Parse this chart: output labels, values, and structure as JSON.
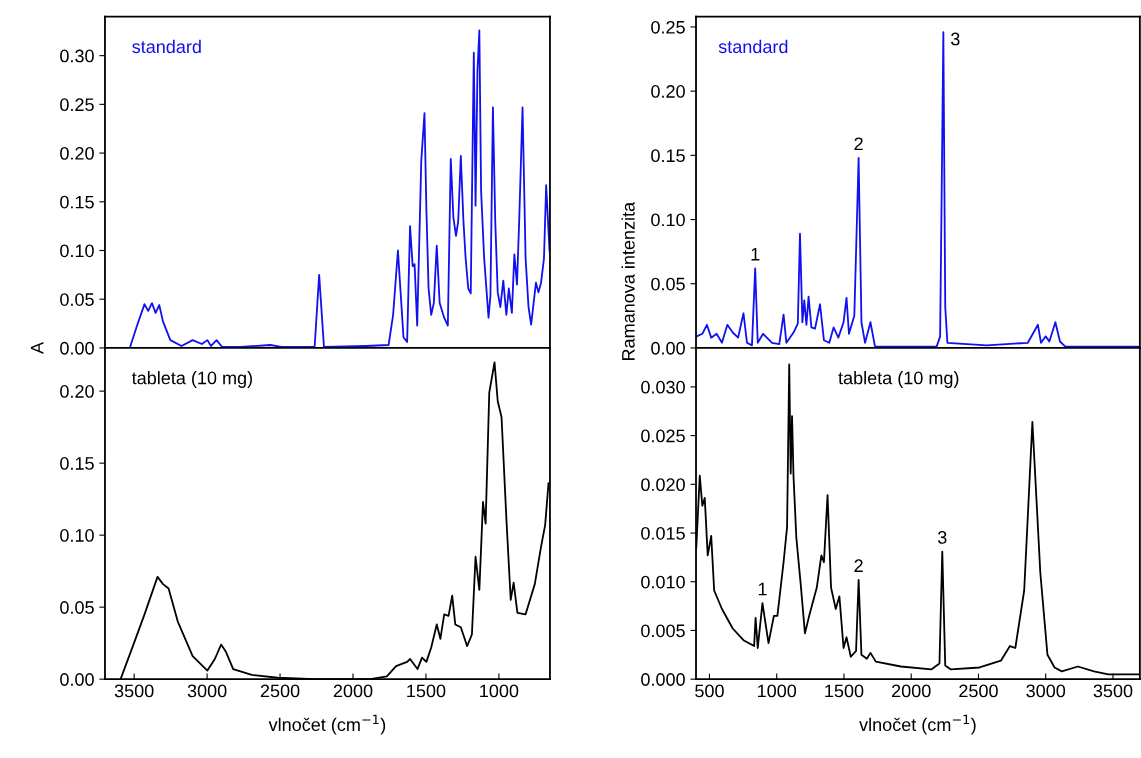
{
  "chart_data": [
    {
      "type": "line",
      "annotations": [
        "standard"
      ],
      "ylabel": "A",
      "tick_labels": "y",
      "xlim": [
        3700,
        650
      ],
      "ylim": [
        0,
        0.34
      ],
      "xticks": [
        3500,
        3000,
        2500,
        2000,
        1500,
        1000
      ],
      "yticks": [
        {
          "value": 0,
          "label": "0.00"
        },
        {
          "value": 0.05,
          "label": "0.05"
        },
        {
          "value": 0.1,
          "label": "0.10"
        },
        {
          "value": 0.15,
          "label": "0.15"
        },
        {
          "value": 0.2,
          "label": "0.20"
        },
        {
          "value": 0.25,
          "label": "0.25"
        },
        {
          "value": 0.3,
          "label": "0.30"
        }
      ],
      "series": [
        {
          "color": "#1010f0",
          "x": [
            3530,
            3480,
            3429,
            3404,
            3378,
            3353,
            3328,
            3302,
            3252,
            3175,
            3099,
            3036,
            2998,
            2973,
            2935,
            2897,
            2770,
            2567,
            2491,
            2263,
            2232,
            2199,
            1908,
            1756,
            1725,
            1692,
            1654,
            1629,
            1609,
            1591,
            1578,
            1560,
            1532,
            1510,
            1497,
            1482,
            1464,
            1446,
            1426,
            1406,
            1375,
            1350,
            1330,
            1312,
            1294,
            1279,
            1261,
            1243,
            1228,
            1210,
            1193,
            1172,
            1160,
            1147,
            1134,
            1122,
            1101,
            1071,
            1058,
            1041,
            1025,
            1008,
            990,
            970,
            949,
            932,
            911,
            894,
            876,
            861,
            838,
            817,
            797,
            779,
            762,
            746,
            729,
            711,
            691,
            676,
            653
          ],
          "values": [
            0,
            0.023,
            0.045,
            0.038,
            0.046,
            0.036,
            0.044,
            0.027,
            0.008,
            0.002,
            0.008,
            0.004,
            0.008,
            0.002,
            0.008,
            0.001,
            0.001,
            0.003,
            0.001,
            0.001,
            0.075,
            0.001,
            0.002,
            0.003,
            0.034,
            0.1,
            0.011,
            0.006,
            0.125,
            0.084,
            0.086,
            0.023,
            0.192,
            0.241,
            0.142,
            0.061,
            0.034,
            0.046,
            0.105,
            0.046,
            0.031,
            0.023,
            0.194,
            0.134,
            0.115,
            0.13,
            0.197,
            0.13,
            0.092,
            0.061,
            0.056,
            0.303,
            0.146,
            0.284,
            0.326,
            0.161,
            0.092,
            0.031,
            0.054,
            0.247,
            0.13,
            0.057,
            0.042,
            0.069,
            0.034,
            0.061,
            0.036,
            0.096,
            0.065,
            0.13,
            0.247,
            0.092,
            0.042,
            0.024,
            0.046,
            0.067,
            0.057,
            0.067,
            0.092,
            0.167,
            0.1
          ]
        }
      ]
    },
    {
      "type": "line",
      "annotations": [
        "standard",
        {
          "text": "1",
          "x": 840,
          "y": 0.062
        },
        {
          "text": "2",
          "x": 1609,
          "y": 0.148
        },
        {
          "text": "3",
          "x": 2239,
          "y": 0.246
        }
      ],
      "ylabel": "Ramanova intenzita",
      "tick_labels": "y",
      "xlim": [
        400,
        3700
      ],
      "ylim": [
        0,
        0.258
      ],
      "xticks": [
        500,
        1000,
        1500,
        2000,
        2500,
        3000,
        3500
      ],
      "yticks": [
        {
          "value": 0,
          "label": "0.00"
        },
        {
          "value": 0.05,
          "label": "0.05"
        },
        {
          "value": 0.1,
          "label": "0.10"
        },
        {
          "value": 0.15,
          "label": "0.15"
        },
        {
          "value": 0.2,
          "label": "0.20"
        },
        {
          "value": 0.25,
          "label": "0.25"
        }
      ],
      "series": [
        {
          "color": "#1010f0",
          "x": [
            407,
            447,
            481,
            513,
            553,
            593,
            633,
            673,
            713,
            753,
            779,
            816,
            840,
            859,
            899,
            965,
            1019,
            1051,
            1072,
            1125,
            1157,
            1173,
            1191,
            1205,
            1221,
            1237,
            1258,
            1285,
            1322,
            1351,
            1391,
            1423,
            1458,
            1497,
            1519,
            1537,
            1577,
            1609,
            1630,
            1657,
            1697,
            1731,
            1923,
            2189,
            2215,
            2231,
            2239,
            2253,
            2269,
            2561,
            2867,
            2942,
            2965,
            3000,
            3027,
            3072,
            3106,
            3146,
            3691
          ],
          "values": [
            0.009,
            0.011,
            0.018,
            0.008,
            0.011,
            0.004,
            0.018,
            0.012,
            0.008,
            0.027,
            0.004,
            0.002,
            0.062,
            0.004,
            0.011,
            0.004,
            0.003,
            0.026,
            0.004,
            0.012,
            0.019,
            0.089,
            0.02,
            0.037,
            0.018,
            0.04,
            0.016,
            0.015,
            0.034,
            0.006,
            0.004,
            0.016,
            0.008,
            0.02,
            0.039,
            0.011,
            0.025,
            0.148,
            0.02,
            0.004,
            0.02,
            0.001,
            0.001,
            0.001,
            0.009,
            0.166,
            0.246,
            0.032,
            0.004,
            0.002,
            0.004,
            0.018,
            0.004,
            0.009,
            0.005,
            0.02,
            0.005,
            0.001,
            0.001
          ]
        }
      ]
    },
    {
      "type": "line",
      "annotations": [
        "tableta (10 mg)"
      ],
      "xlabel": "vlnočet (cm$^{−1}$)",
      "xlim": [
        3700,
        650
      ],
      "ylim": [
        0,
        0.23
      ],
      "xticks": [
        3500,
        3000,
        2500,
        2000,
        1500,
        1000
      ],
      "yticks": [
        {
          "value": 0,
          "label": "0.00"
        },
        {
          "value": 0.05,
          "label": "0.05"
        },
        {
          "value": 0.1,
          "label": "0.10"
        },
        {
          "value": 0.15,
          "label": "0.15"
        },
        {
          "value": 0.2,
          "label": "0.20"
        }
      ],
      "series": [
        {
          "color": "#000000",
          "x": [
            3593,
            3505,
            3429,
            3340,
            3302,
            3264,
            3201,
            3099,
            2998,
            2947,
            2904,
            2871,
            2821,
            2694,
            2516,
            2263,
            1882,
            1768,
            1705,
            1629,
            1609,
            1558,
            1527,
            1497,
            1464,
            1426,
            1401,
            1375,
            1345,
            1320,
            1299,
            1261,
            1218,
            1185,
            1160,
            1134,
            1109,
            1091,
            1066,
            1030,
            1008,
            982,
            949,
            919,
            899,
            873,
            817,
            754,
            711,
            683,
            660
          ],
          "values": [
            0,
            0.024,
            0.045,
            0.071,
            0.066,
            0.063,
            0.04,
            0.016,
            0.006,
            0.014,
            0.024,
            0.019,
            0.007,
            0.003,
            0.001,
            0,
            0,
            0.002,
            0.009,
            0.012,
            0.014,
            0.007,
            0.015,
            0.012,
            0.022,
            0.038,
            0.028,
            0.045,
            0.044,
            0.058,
            0.038,
            0.036,
            0.023,
            0.031,
            0.085,
            0.062,
            0.123,
            0.108,
            0.199,
            0.22,
            0.193,
            0.182,
            0.112,
            0.055,
            0.067,
            0.046,
            0.045,
            0.066,
            0.092,
            0.107,
            0.136
          ]
        }
      ]
    },
    {
      "type": "line",
      "annotations": [
        "tableta (10 mg)",
        {
          "text": "1",
          "x": 894,
          "y": 0.0078
        },
        {
          "text": "2",
          "x": 1609,
          "y": 0.0102
        },
        {
          "text": "3",
          "x": 2231,
          "y": 0.0131
        }
      ],
      "xlabel": "vlnočet (cm$^{−1}$)",
      "xlim": [
        400,
        3700
      ],
      "ylim": [
        0,
        0.034
      ],
      "xticks": [
        500,
        1000,
        1500,
        2000,
        2500,
        3000,
        3500
      ],
      "yticks": [
        {
          "value": 0,
          "label": "0.000"
        },
        {
          "value": 0.005,
          "label": "0.005"
        },
        {
          "value": 0.01,
          "label": "0.010"
        },
        {
          "value": 0.015,
          "label": "0.015"
        },
        {
          "value": 0.02,
          "label": "0.020"
        },
        {
          "value": 0.025,
          "label": "0.025"
        },
        {
          "value": 0.03,
          "label": "0.030"
        }
      ],
      "series": [
        {
          "color": "#000000",
          "x": [
            402,
            428,
            447,
            465,
            487,
            513,
            535,
            593,
            673,
            753,
            832,
            843,
            859,
            894,
            939,
            979,
            1005,
            1051,
            1077,
            1093,
            1104,
            1114,
            1125,
            1146,
            1178,
            1210,
            1245,
            1298,
            1332,
            1351,
            1378,
            1404,
            1439,
            1466,
            1497,
            1519,
            1551,
            1590,
            1609,
            1630,
            1670,
            1697,
            1737,
            1923,
            2149,
            2210,
            2231,
            2253,
            2295,
            2508,
            2667,
            2734,
            2774,
            2840,
            2901,
            2960,
            3013,
            3066,
            3120,
            3239,
            3359,
            3465,
            3691
          ],
          "values": [
            0.0135,
            0.0209,
            0.0178,
            0.0186,
            0.0127,
            0.0147,
            0.0091,
            0.0072,
            0.0052,
            0.004,
            0.0034,
            0.0063,
            0.0032,
            0.0078,
            0.0037,
            0.0065,
            0.0065,
            0.012,
            0.0156,
            0.0323,
            0.0211,
            0.027,
            0.0208,
            0.0145,
            0.0098,
            0.0047,
            0.0067,
            0.0094,
            0.0127,
            0.012,
            0.0189,
            0.0094,
            0.0072,
            0.0085,
            0.0032,
            0.0043,
            0.0023,
            0.0029,
            0.0102,
            0.0025,
            0.0021,
            0.0027,
            0.0018,
            0.0013,
            0.001,
            0.0016,
            0.0131,
            0.0014,
            0.001,
            0.0012,
            0.0019,
            0.0034,
            0.0032,
            0.0091,
            0.0264,
            0.0109,
            0.0025,
            0.0012,
            0.0008,
            0.0013,
            0.0008,
            0.0005,
            0.0005
          ]
        }
      ]
    }
  ]
}
